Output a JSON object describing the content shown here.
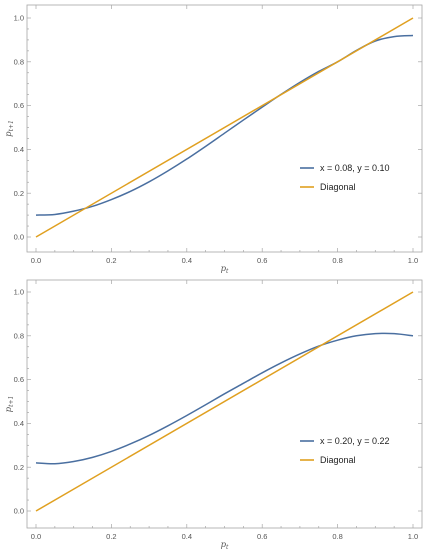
{
  "chart_data": [
    {
      "type": "line",
      "xlabel": "p",
      "xlabel_sub": "t",
      "ylabel": "p",
      "ylabel_sub": "t+1",
      "xlim": [
        0,
        1
      ],
      "ylim": [
        -0.05,
        1.05
      ],
      "xticks": [
        "0.0",
        "0.2",
        "0.4",
        "0.6",
        "0.8",
        "1.0"
      ],
      "yticks": [
        "0.0",
        "0.2",
        "0.4",
        "0.6",
        "0.8",
        "1.0"
      ],
      "legend_position": "right-middle",
      "series": [
        {
          "name": "x = 0.08, y = 0.10",
          "color": "#4a6fa0",
          "x": [
            0.0,
            0.05,
            0.1,
            0.15,
            0.2,
            0.25,
            0.3,
            0.35,
            0.4,
            0.45,
            0.5,
            0.55,
            0.6,
            0.65,
            0.7,
            0.75,
            0.8,
            0.85,
            0.9,
            0.95,
            1.0
          ],
          "y": [
            0.1,
            0.103,
            0.118,
            0.14,
            0.171,
            0.208,
            0.252,
            0.302,
            0.356,
            0.414,
            0.474,
            0.534,
            0.593,
            0.651,
            0.706,
            0.756,
            0.8,
            0.852,
            0.895,
            0.915,
            0.92
          ]
        },
        {
          "name": "Diagonal",
          "color": "#e0a020",
          "x": [
            0,
            1
          ],
          "y": [
            0,
            1
          ]
        }
      ]
    },
    {
      "type": "line",
      "xlabel": "p",
      "xlabel_sub": "t",
      "ylabel": "p",
      "ylabel_sub": "t+1",
      "xlim": [
        0,
        1
      ],
      "ylim": [
        -0.05,
        1.05
      ],
      "xticks": [
        "0.0",
        "0.2",
        "0.4",
        "0.6",
        "0.8",
        "1.0"
      ],
      "yticks": [
        "0.0",
        "0.2",
        "0.4",
        "0.6",
        "0.8",
        "1.0"
      ],
      "legend_position": "right-lower",
      "series": [
        {
          "name": "x = 0.20, y = 0.22",
          "color": "#4a6fa0",
          "x": [
            0.0,
            0.05,
            0.1,
            0.15,
            0.2,
            0.25,
            0.3,
            0.35,
            0.4,
            0.45,
            0.5,
            0.55,
            0.6,
            0.65,
            0.7,
            0.75,
            0.8,
            0.85,
            0.9,
            0.95,
            1.0
          ],
          "y": [
            0.22,
            0.216,
            0.226,
            0.245,
            0.272,
            0.306,
            0.345,
            0.389,
            0.436,
            0.485,
            0.535,
            0.583,
            0.631,
            0.676,
            0.717,
            0.753,
            0.78,
            0.8,
            0.81,
            0.81,
            0.8
          ]
        },
        {
          "name": "Diagonal",
          "color": "#e0a020",
          "x": [
            0,
            1
          ],
          "y": [
            0,
            1
          ]
        }
      ]
    }
  ]
}
